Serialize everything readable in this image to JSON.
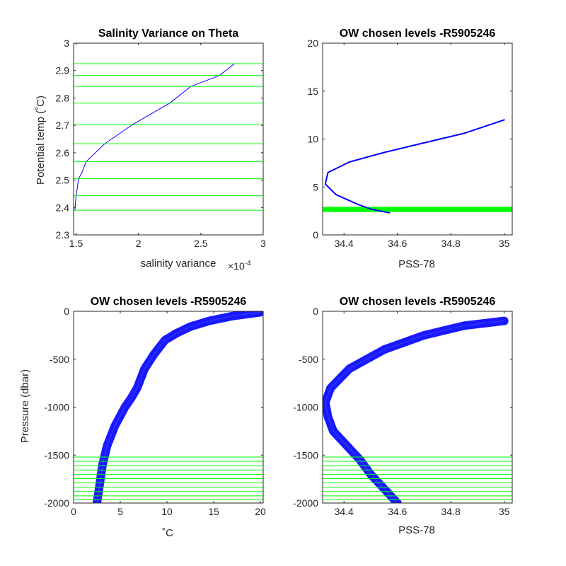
{
  "colors": {
    "profile": "#0000FF",
    "chosen_level": "#00FF00",
    "axis": "#262626"
  },
  "chart_data": [
    {
      "id": "p1",
      "type": "line",
      "title": "Salinity Variance on Theta",
      "xlabel": "salinity variance",
      "x_exponent": "×10",
      "x_exponent_power": "-4",
      "ylabel": "Potential temp (˚C)",
      "xlim": [
        1.48,
        3.0
      ],
      "ylim": [
        2.3,
        3.0
      ],
      "xticks": [
        1.5,
        2,
        2.5,
        3
      ],
      "xtick_labels": [
        "1.5",
        "2",
        "2.5",
        "3"
      ],
      "yticks": [
        2.3,
        2.4,
        2.5,
        2.6,
        2.7,
        2.8,
        2.9,
        3.0
      ],
      "ytick_labels": [
        "2.3",
        "2.4",
        "2.5",
        "2.6",
        "2.7",
        "2.8",
        "2.9",
        "3"
      ],
      "grid": false,
      "hlines": [
        2.39,
        2.443,
        2.505,
        2.567,
        2.633,
        2.702,
        2.781,
        2.842,
        2.882,
        2.925
      ],
      "series": [
        {
          "x": [
            1.49,
            1.5,
            1.52,
            1.55,
            1.58,
            1.73,
            1.95,
            2.25,
            2.42,
            2.65,
            2.77
          ],
          "y": [
            2.39,
            2.443,
            2.505,
            2.53,
            2.567,
            2.633,
            2.702,
            2.781,
            2.842,
            2.882,
            2.925
          ]
        }
      ]
    },
    {
      "id": "p2",
      "type": "line",
      "title": "OW chosen levels -R5905246",
      "xlabel": "PSS-78",
      "ylabel": "",
      "xlim": [
        34.32,
        35.03
      ],
      "ylim": [
        0,
        20
      ],
      "xticks": [
        34.4,
        34.6,
        34.8,
        35
      ],
      "xtick_labels": [
        "34.4",
        "34.6",
        "34.8",
        "35"
      ],
      "yticks": [
        0,
        5,
        10,
        15,
        20
      ],
      "ytick_labels": [
        "0",
        "5",
        "10",
        "15",
        "20"
      ],
      "grid": false,
      "band": [
        2.39,
        2.925
      ],
      "series": [
        {
          "name": "",
          "x": [
            34.57,
            34.5,
            34.45,
            34.37,
            34.33,
            34.34,
            34.42,
            34.55,
            34.7,
            34.85,
            35.0
          ],
          "y": [
            2.3,
            2.7,
            3.2,
            4.2,
            5.3,
            6.5,
            7.6,
            8.6,
            9.6,
            10.6,
            12.0
          ]
        }
      ]
    },
    {
      "id": "p3",
      "type": "line",
      "title": "OW chosen levels -R5905246",
      "xlabel": "˚C",
      "ylabel": "Pressure (dbar)",
      "xlim": [
        0,
        20.3
      ],
      "ylim": [
        -2000,
        0
      ],
      "xticks": [
        0,
        5,
        10,
        15,
        20
      ],
      "xtick_labels": [
        "0",
        "5",
        "10",
        "15",
        "20"
      ],
      "yticks": [
        -2000,
        -1500,
        -1000,
        -500,
        0
      ],
      "ytick_labels": [
        "-2000",
        "-1500",
        "-1000",
        "-500",
        "0"
      ],
      "grid": false,
      "hlines": [
        -1520,
        -1565,
        -1610,
        -1655,
        -1700,
        -1745,
        -1790,
        -1835,
        -1880,
        -1925,
        -1965
      ],
      "series": [
        {
          "x": [
            2.5,
            2.8,
            3.1,
            3.6,
            4.4,
            5.5,
            6.2,
            6.8,
            7.6,
            8.6,
            9.8,
            11.0,
            12.5,
            14.5,
            17.0,
            20.0
          ],
          "y": [
            -2000,
            -1800,
            -1600,
            -1400,
            -1200,
            -1000,
            -900,
            -800,
            -600,
            -450,
            -300,
            -230,
            -160,
            -100,
            -50,
            -10
          ]
        }
      ]
    },
    {
      "id": "p4",
      "type": "line",
      "title": "OW chosen levels -R5905246",
      "xlabel": "PSS-78",
      "ylabel": "",
      "xlim": [
        34.32,
        35.03
      ],
      "ylim": [
        -2000,
        0
      ],
      "xticks": [
        34.4,
        34.6,
        34.8,
        35
      ],
      "xtick_labels": [
        "34.4",
        "34.6",
        "34.8",
        "35"
      ],
      "yticks": [
        -2000,
        -1500,
        -1000,
        -500,
        0
      ],
      "ytick_labels": [
        "-2000",
        "-1500",
        "-1000",
        "-500",
        "0"
      ],
      "grid": false,
      "hlines": [
        -1520,
        -1565,
        -1610,
        -1655,
        -1700,
        -1745,
        -1790,
        -1835,
        -1880,
        -1925,
        -1965
      ],
      "series": [
        {
          "x": [
            34.6,
            34.55,
            34.5,
            34.46,
            34.41,
            34.36,
            34.34,
            34.33,
            34.35,
            34.42,
            34.55,
            34.7,
            34.85,
            35.0
          ],
          "y": [
            -2000,
            -1850,
            -1700,
            -1550,
            -1400,
            -1250,
            -1100,
            -950,
            -800,
            -600,
            -400,
            -250,
            -150,
            -100
          ]
        }
      ]
    }
  ]
}
